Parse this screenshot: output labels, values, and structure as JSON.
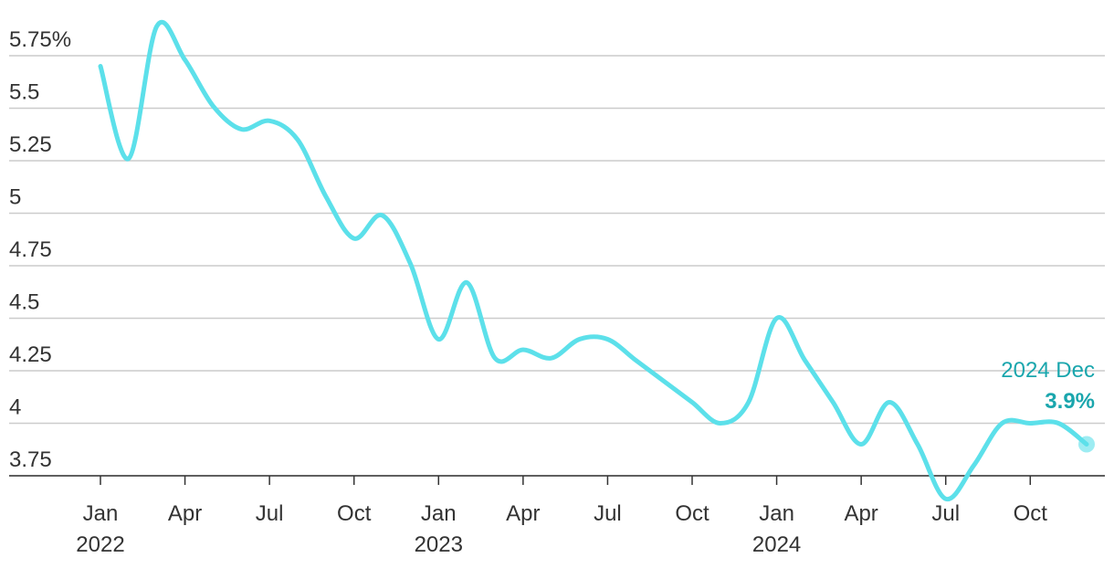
{
  "chart_data": {
    "type": "line",
    "title": "",
    "xlabel": "",
    "ylabel": "",
    "ylim": [
      3.65,
      5.85
    ],
    "grid": true,
    "y_ticks": [
      {
        "value": 5.75,
        "label": "5.75%"
      },
      {
        "value": 5.5,
        "label": "5.5"
      },
      {
        "value": 5.25,
        "label": "5.25"
      },
      {
        "value": 5,
        "label": "5"
      },
      {
        "value": 4.75,
        "label": "4.75"
      },
      {
        "value": 4.5,
        "label": "4.5"
      },
      {
        "value": 4.25,
        "label": "4.25"
      },
      {
        "value": 4,
        "label": "4"
      },
      {
        "value": 3.75,
        "label": "3.75"
      }
    ],
    "x_ticks": [
      {
        "date": "2022-01",
        "month": "Jan",
        "year": "2022"
      },
      {
        "date": "2022-04",
        "month": "Apr",
        "year": ""
      },
      {
        "date": "2022-07",
        "month": "Jul",
        "year": ""
      },
      {
        "date": "2022-10",
        "month": "Oct",
        "year": ""
      },
      {
        "date": "2023-01",
        "month": "Jan",
        "year": "2023"
      },
      {
        "date": "2023-04",
        "month": "Apr",
        "year": ""
      },
      {
        "date": "2023-07",
        "month": "Jul",
        "year": ""
      },
      {
        "date": "2023-10",
        "month": "Oct",
        "year": ""
      },
      {
        "date": "2024-01",
        "month": "Jan",
        "year": "2024"
      },
      {
        "date": "2024-04",
        "month": "Apr",
        "year": ""
      },
      {
        "date": "2024-07",
        "month": "Jul",
        "year": ""
      },
      {
        "date": "2024-10",
        "month": "Oct",
        "year": ""
      }
    ],
    "series": [
      {
        "color": "#5ce0ea",
        "x": [
          "2022-01",
          "2022-02",
          "2022-03",
          "2022-04",
          "2022-05",
          "2022-06",
          "2022-07",
          "2022-08",
          "2022-09",
          "2022-10",
          "2022-11",
          "2022-12",
          "2023-01",
          "2023-02",
          "2023-03",
          "2023-04",
          "2023-05",
          "2023-06",
          "2023-07",
          "2023-08",
          "2023-09",
          "2023-10",
          "2023-11",
          "2023-12",
          "2024-01",
          "2024-02",
          "2024-03",
          "2024-04",
          "2024-05",
          "2024-06",
          "2024-07",
          "2024-08",
          "2024-09",
          "2024-10",
          "2024-11",
          "2024-12"
        ],
        "y": [
          5.7,
          5.26,
          5.89,
          5.73,
          5.51,
          5.4,
          5.44,
          5.35,
          5.08,
          4.88,
          4.99,
          4.76,
          4.4,
          4.67,
          4.31,
          4.35,
          4.31,
          4.4,
          4.4,
          4.3,
          4.2,
          4.1,
          4.0,
          4.1,
          4.5,
          4.3,
          4.1,
          3.9,
          4.1,
          3.9,
          3.64,
          3.8,
          4.0,
          4.0,
          4.0,
          3.9
        ]
      }
    ],
    "annotation": {
      "label": "2024 Dec",
      "value": "3.9%",
      "color": "#1aa6ad"
    }
  }
}
